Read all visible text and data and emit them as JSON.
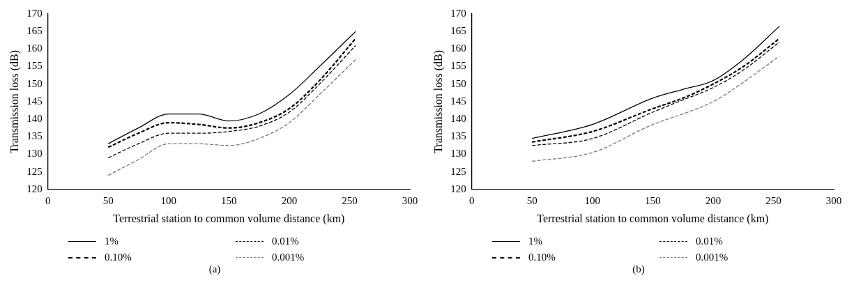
{
  "chart_data": [
    {
      "type": "line",
      "xlabel": "Terrestrial station to common volume distance (km)",
      "ylabel": "Transmission loss (dB)",
      "annotations": [
        "(a)"
      ],
      "x": [
        50,
        75,
        100,
        125,
        150,
        175,
        200,
        225,
        255
      ],
      "xlim": [
        0,
        300
      ],
      "xticks": [
        0,
        50,
        100,
        150,
        200,
        250,
        300
      ],
      "ylim": [
        120,
        170
      ],
      "yticks": [
        120,
        125,
        130,
        135,
        140,
        145,
        150,
        155,
        160,
        165,
        170
      ],
      "grid": false,
      "legend": "bottom",
      "series": [
        {
          "name": "1%",
          "color": "#000000",
          "line_style": "solid",
          "values": [
            133,
            137.5,
            141.5,
            141.5,
            139.5,
            141.5,
            147,
            155,
            165
          ]
        },
        {
          "name": "0.10%",
          "color": "#000000",
          "line_style": "dashed",
          "values": [
            132,
            136,
            139,
            138.5,
            137.5,
            139,
            143,
            151,
            163
          ]
        },
        {
          "name": "0.01%",
          "color": "#000000",
          "line_style": "dashed",
          "values": [
            129,
            133,
            136,
            136,
            136.5,
            138,
            142,
            150,
            161
          ]
        },
        {
          "name": "0.001%",
          "color": "#7b6ba8",
          "line_style": "dashed",
          "values": [
            124,
            128.5,
            133,
            133,
            132.5,
            134.5,
            139,
            147,
            157
          ]
        }
      ]
    },
    {
      "type": "line",
      "xlabel": "Terrestrial station to common volume distance (km)",
      "ylabel": "Transmission loss (dB)",
      "annotations": [
        "(b)"
      ],
      "x": [
        50,
        100,
        150,
        175,
        200,
        225,
        255
      ],
      "xlim": [
        0,
        300
      ],
      "xticks": [
        0,
        50,
        100,
        150,
        200,
        250,
        300
      ],
      "ylim": [
        120,
        170
      ],
      "yticks": [
        120,
        125,
        130,
        135,
        140,
        145,
        150,
        155,
        160,
        165,
        170
      ],
      "grid": false,
      "legend": "bottom",
      "series": [
        {
          "name": "1%",
          "color": "#000000",
          "line_style": "solid",
          "values": [
            134.5,
            138.5,
            146,
            148.5,
            151,
            157,
            166.5
          ]
        },
        {
          "name": "0.10%",
          "color": "#000000",
          "line_style": "dashed",
          "values": [
            133.5,
            136.5,
            143,
            146,
            150,
            155,
            163
          ]
        },
        {
          "name": "0.01%",
          "color": "#000000",
          "line_style": "dashed",
          "values": [
            132.5,
            134.5,
            142,
            145.5,
            149,
            154,
            162
          ]
        },
        {
          "name": "0.001%",
          "color": "#7b6ba8",
          "line_style": "dashed",
          "values": [
            128,
            130.5,
            138.5,
            141.5,
            145,
            150.5,
            158
          ]
        }
      ]
    }
  ]
}
